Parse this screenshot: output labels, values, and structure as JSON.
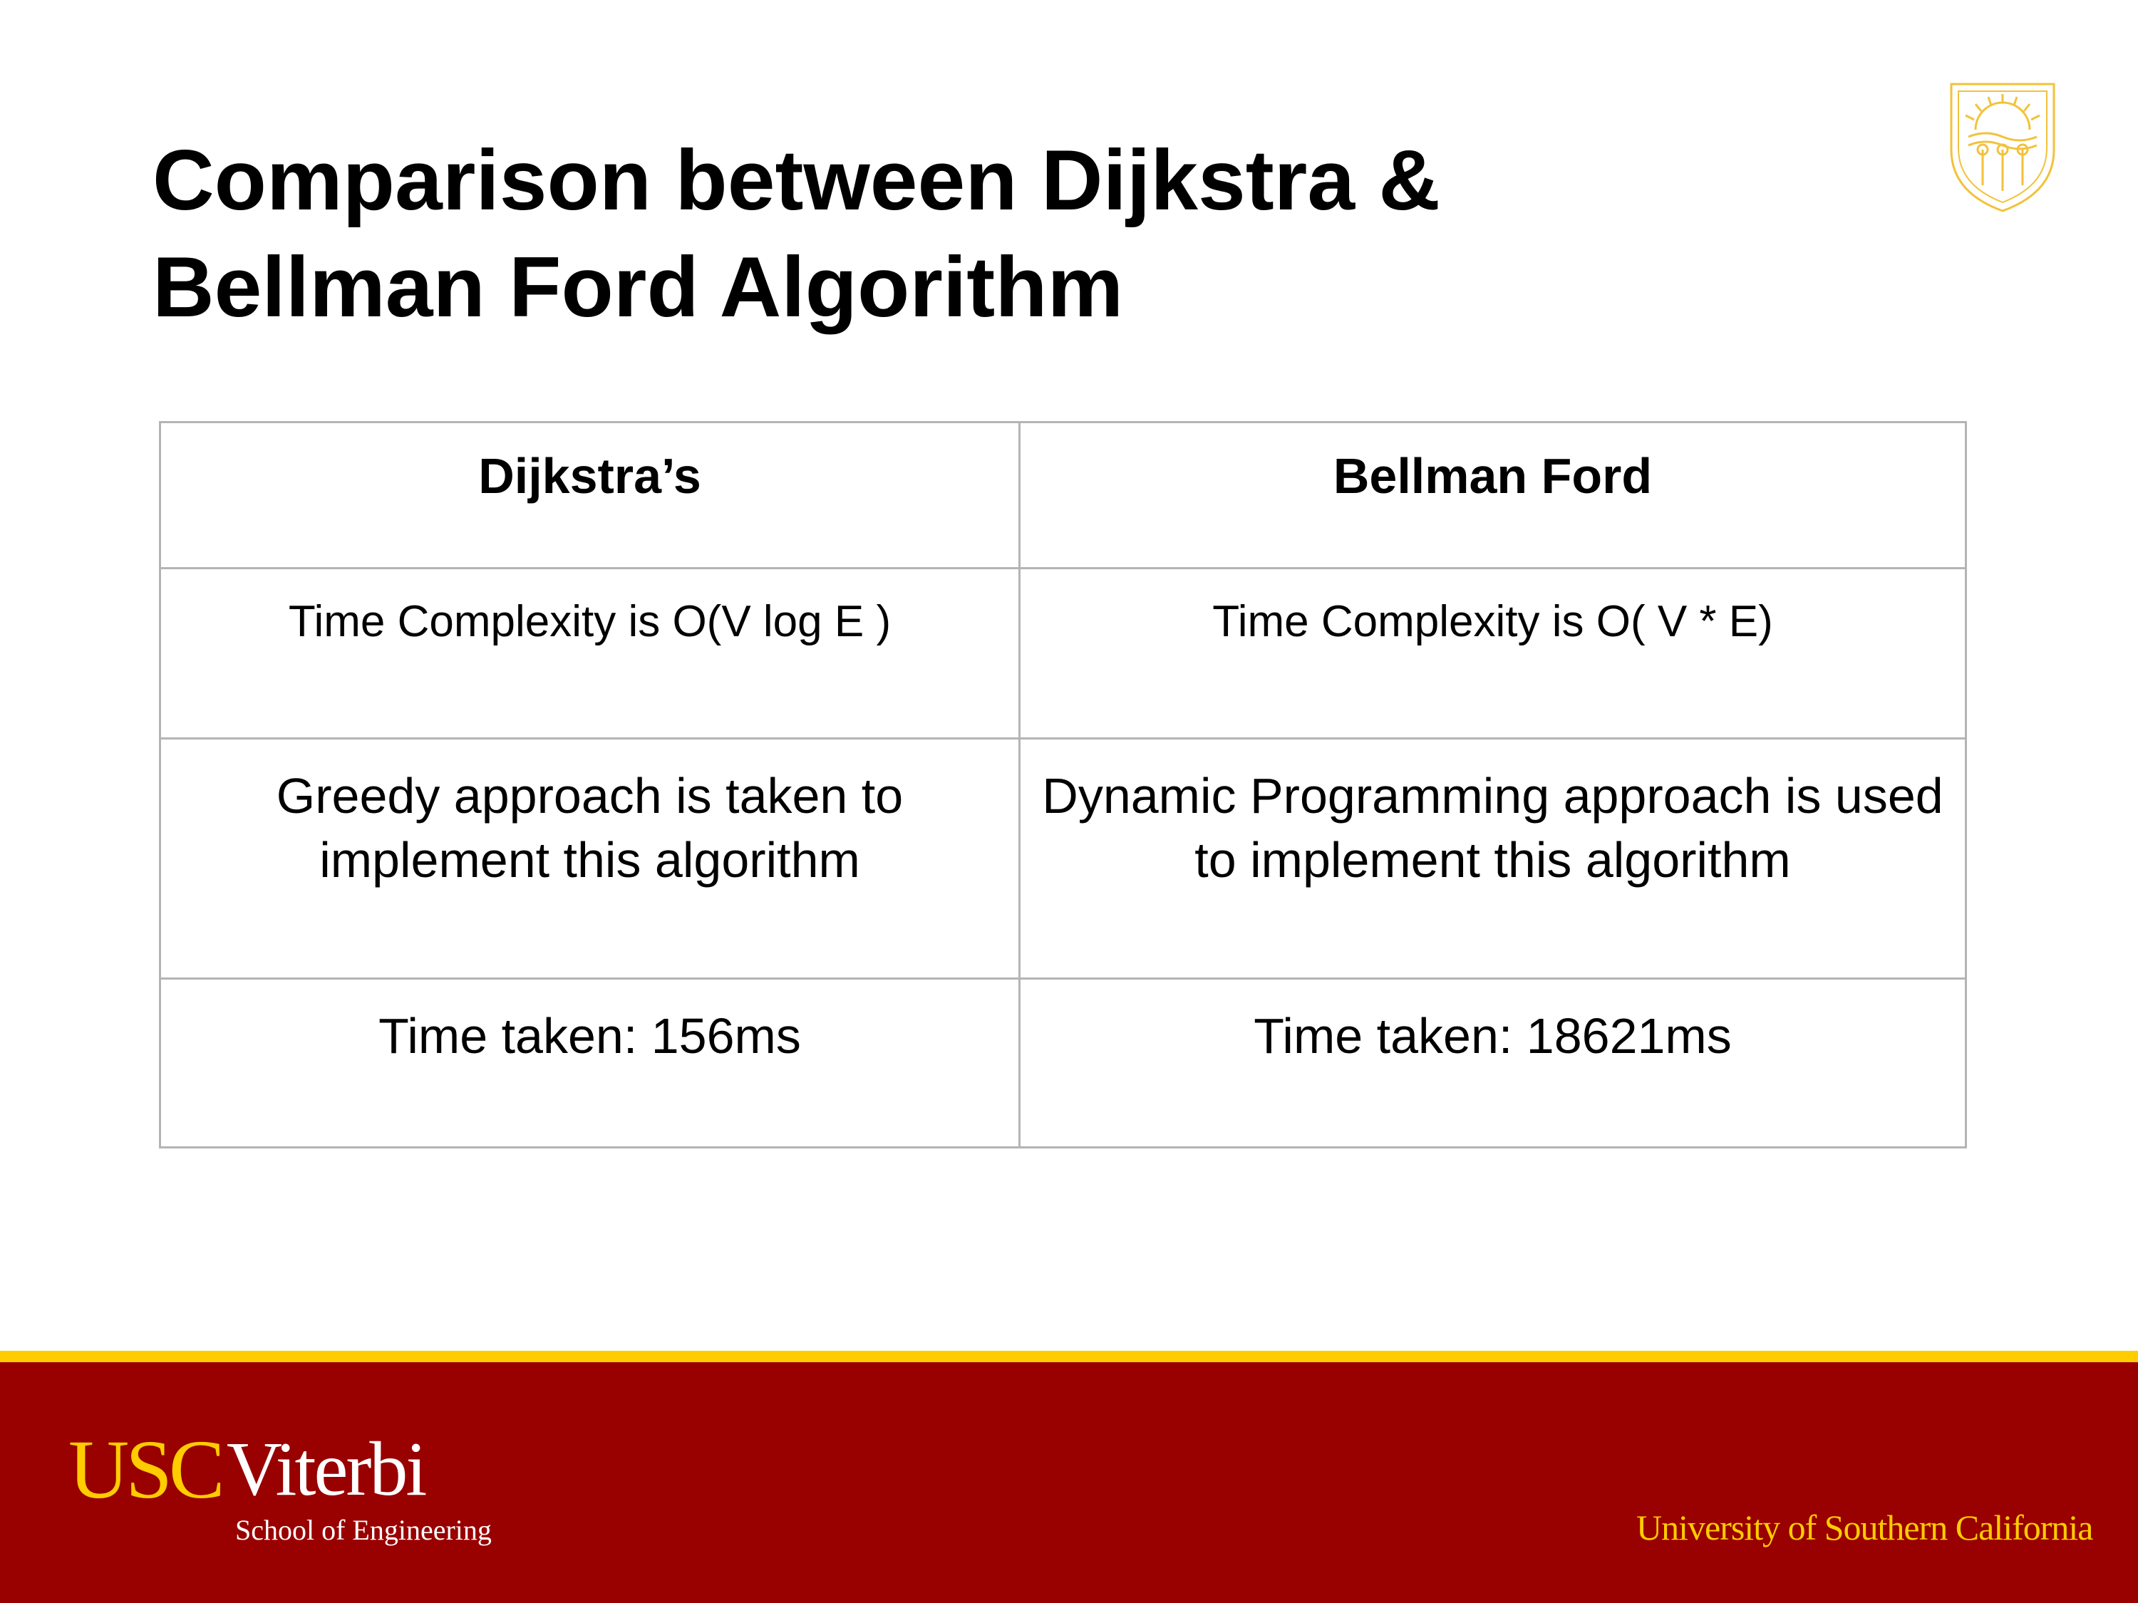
{
  "slide": {
    "title": "Comparison between Dijkstra &\nBellman Ford Algorithm"
  },
  "table": {
    "headers": [
      "Dijkstra’s",
      "Bellman Ford"
    ],
    "rows": [
      [
        "Time Complexity is O(V log E )",
        "Time Complexity is O( V * E)"
      ],
      [
        "Greedy approach is taken to implement this algorithm",
        "Dynamic Programming approach is used to implement this algorithm"
      ],
      [
        "Time taken: 156ms",
        "Time taken: 18621ms"
      ]
    ]
  },
  "footer": {
    "logo_usc": "USC",
    "logo_viterbi": "Viterbi",
    "logo_school": "School of Engineering",
    "university": "University of Southern California"
  },
  "colors": {
    "cardinal": "#990000",
    "gold": "#ffcc00",
    "table_border": "#b4b4b4",
    "text": "#000000"
  },
  "icons": {
    "seal": "usc-seal-icon"
  }
}
